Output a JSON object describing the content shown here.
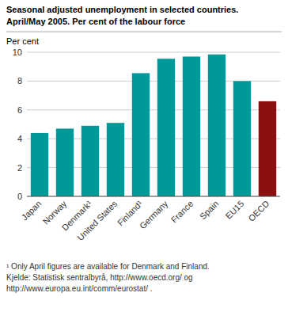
{
  "chart_data": {
    "type": "bar",
    "title": "Seasonal adjusted unemployment in selected countries.",
    "subtitle": "April/May 2005. Per cent of the labour force",
    "ylabel": "Per cent",
    "categories": [
      "Japan",
      "Norway",
      "Denmark¹",
      "United States",
      "Finland¹",
      "Germany",
      "France",
      "Spain",
      "EU15",
      "OECD"
    ],
    "values": [
      4.4,
      4.7,
      4.9,
      5.1,
      8.55,
      9.55,
      9.7,
      9.85,
      8.0,
      6.6
    ],
    "colors": [
      "#00999A",
      "#00999A",
      "#00999A",
      "#00999A",
      "#00999A",
      "#00999A",
      "#00999A",
      "#00999A",
      "#00999A",
      "#8B1010"
    ],
    "ylim": [
      0,
      10
    ],
    "yticks": [
      0,
      2,
      4,
      6,
      8,
      10
    ],
    "grid": true,
    "annotations": [
      "¹ Only April figures are available for Denmark and Finland.",
      "Kjelde: Statistisk sentralbyrå, http://www.oecd.org/ og",
      "http://www.europa.eu.int/comm/eurostat/ ."
    ]
  }
}
